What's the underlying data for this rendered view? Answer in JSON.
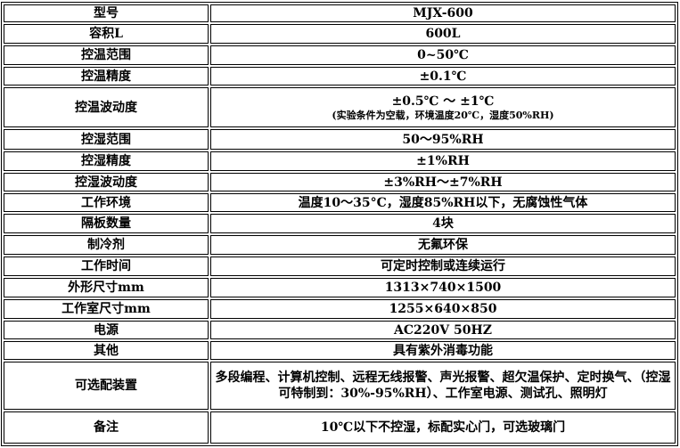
{
  "rows": [
    {
      "label": "型号",
      "value": "MJX-600"
    },
    {
      "label": "容积L",
      "value": "600L"
    },
    {
      "label": "控温范围",
      "value": "0~50℃"
    },
    {
      "label": "控温精度",
      "value": "±0.1℃"
    },
    {
      "label": "控温波动度",
      "value": "±0.5℃  ～  ±1℃",
      "note": "(实验条件为空载，环境温度20℃，湿度50%RH)"
    },
    {
      "label": "控湿范围",
      "value": "50～95%RH"
    },
    {
      "label": "控湿精度",
      "value": "±1%RH"
    },
    {
      "label": "控湿波动度",
      "value": "±3%RH～±7%RH"
    },
    {
      "label": "工作环境",
      "value": "温度10～35°C，湿度85%RH以下，无腐蚀性气体"
    },
    {
      "label": "隔板数量",
      "value": "4块"
    },
    {
      "label": "制冷剂",
      "value": "无氟环保"
    },
    {
      "label": "工作时间",
      "value": "可定时控制或连续运行"
    },
    {
      "label": "外形尺寸mm",
      "value": "1313×740×1500"
    },
    {
      "label": "工作室尺寸mm",
      "value": "1255×640×850"
    },
    {
      "label": "电源",
      "value": "AC220V      50HZ"
    },
    {
      "label": "其他",
      "value": "具有紫外消毒功能"
    },
    {
      "label": "可选配装置",
      "value": "多段编程、计算机控制、远程无线报警、声光报警、超欠温保护、定时换气、（控湿可特制到：30%-95%RH）、工作室电源、测试孔、照明灯"
    },
    {
      "label": "备注",
      "value": "10℃以下不控湿，标配实心门，可选玻璃门"
    }
  ]
}
